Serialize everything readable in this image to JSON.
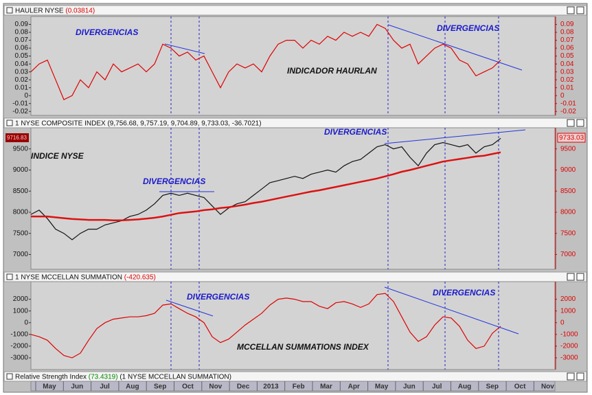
{
  "chart_data": [
    {
      "type": "line",
      "title": "HAULER NYSE",
      "title_value": "(0.03814)",
      "ylim": [
        -0.025,
        0.1
      ],
      "yticks": [
        0.09,
        0.08,
        0.07,
        0.06,
        0.05,
        0.04,
        0.03,
        0.02,
        0.01,
        0,
        -0.01,
        -0.02
      ],
      "annotations": [
        "DIVERGENCIAS",
        "DIVERGENCIAS",
        "INDICADOR HAURLAN"
      ],
      "series": [
        {
          "color": "#e00000",
          "values": [
            0.03,
            0.04,
            0.045,
            0.02,
            -0.005,
            0.0,
            0.02,
            0.01,
            0.03,
            0.02,
            0.04,
            0.03,
            0.035,
            0.04,
            0.03,
            0.04,
            0.065,
            0.06,
            0.05,
            0.055,
            0.045,
            0.05,
            0.03,
            0.01,
            0.03,
            0.04,
            0.035,
            0.04,
            0.03,
            0.05,
            0.065,
            0.07,
            0.07,
            0.06,
            0.07,
            0.065,
            0.075,
            0.07,
            0.08,
            0.075,
            0.08,
            0.075,
            0.09,
            0.085,
            0.07,
            0.06,
            0.065,
            0.04,
            0.05,
            0.06,
            0.065,
            0.06,
            0.045,
            0.04,
            0.025,
            0.03,
            0.035,
            0.045
          ]
        }
      ]
    },
    {
      "type": "line",
      "title": "1 NYSE COMPOSITE INDEX (9,756.68, 9,757.19, 9,704.89, 9,733.03, -36.7021)",
      "ylim": [
        6650,
        10000
      ],
      "yticks": [
        9500,
        9000,
        8500,
        8000,
        7500,
        7000
      ],
      "last_label": "9733.03",
      "left_label": "9716.83",
      "annotations": [
        "DIVERGENCIAS",
        "DIVERGENCIAS",
        "INDICE NYSE"
      ],
      "series": [
        {
          "color": "#111111",
          "values": [
            7950,
            8050,
            7850,
            7600,
            7500,
            7350,
            7500,
            7600,
            7600,
            7700,
            7750,
            7800,
            7900,
            7950,
            8050,
            8200,
            8400,
            8450,
            8400,
            8450,
            8400,
            8350,
            8150,
            7950,
            8100,
            8200,
            8250,
            8400,
            8550,
            8700,
            8750,
            8800,
            8850,
            8800,
            8900,
            8950,
            9000,
            8950,
            9100,
            9200,
            9250,
            9400,
            9550,
            9600,
            9500,
            9550,
            9300,
            9100,
            9400,
            9600,
            9650,
            9600,
            9550,
            9600,
            9400,
            9550,
            9600,
            9750
          ]
        },
        {
          "color": "#dd1111",
          "values": [
            7900,
            7900,
            7900,
            7880,
            7860,
            7840,
            7830,
            7820,
            7820,
            7820,
            7810,
            7810,
            7820,
            7830,
            7850,
            7870,
            7900,
            7940,
            7980,
            8000,
            8020,
            8050,
            8070,
            8100,
            8120,
            8150,
            8180,
            8220,
            8250,
            8290,
            8330,
            8370,
            8410,
            8450,
            8490,
            8520,
            8560,
            8600,
            8640,
            8680,
            8720,
            8760,
            8800,
            8850,
            8900,
            8960,
            9000,
            9050,
            9100,
            9150,
            9200,
            9230,
            9260,
            9290,
            9320,
            9340,
            9380,
            9420
          ]
        }
      ]
    },
    {
      "type": "line",
      "title": "1 NYSE MCCELLAN SUMMATION",
      "title_value": "(-420.635)",
      "ylim": [
        -4000,
        3500
      ],
      "yticks": [
        2000,
        1000,
        0,
        -1000,
        -2000,
        -3000
      ],
      "annotations": [
        "DIVERGENCIAS",
        "DIVERGENCIAS",
        "MCCELLAN SUMMATIONS INDEX"
      ],
      "series": [
        {
          "color": "#e00000",
          "values": [
            -1000,
            -1200,
            -1500,
            -2200,
            -2800,
            -3000,
            -2600,
            -1500,
            -500,
            0,
            300,
            400,
            500,
            500,
            600,
            800,
            1500,
            1600,
            1200,
            800,
            500,
            0,
            -1200,
            -1700,
            -1400,
            -800,
            -200,
            300,
            800,
            1500,
            2000,
            2100,
            2000,
            1800,
            1800,
            1400,
            1200,
            1700,
            1800,
            1600,
            1300,
            1600,
            2400,
            2500,
            1800,
            500,
            -800,
            -1600,
            -1200,
            -200,
            500,
            400,
            -300,
            -1500,
            -2200,
            -2000,
            -900,
            -300
          ]
        }
      ]
    }
  ],
  "footer": {
    "title": "Relative Strength Index",
    "title_value": "(73.4319)",
    "title_rest": "(1 NYSE MCCELLAN SUMMATION)",
    "months": [
      "May",
      "Jun",
      "Jul",
      "Aug",
      "Sep",
      "Oct",
      "Nov",
      "Dec",
      "2013",
      "Feb",
      "Mar",
      "Apr",
      "May",
      "Jun",
      "Jul",
      "Aug",
      "Sep",
      "Oct",
      "Nov"
    ]
  }
}
